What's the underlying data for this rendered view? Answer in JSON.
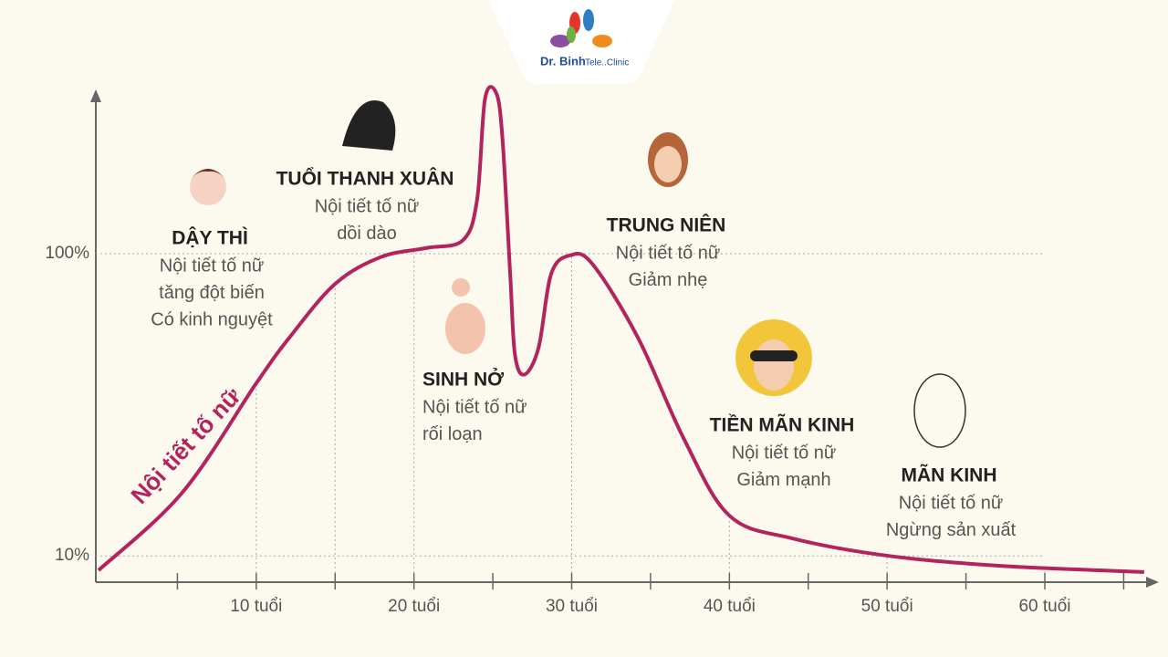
{
  "logo": {
    "name": "Dr. Binh",
    "tagline": "Tele..Clinic"
  },
  "chart_data": {
    "type": "line",
    "series": [
      {
        "name": "Nội tiết tố nữ",
        "color": "#b3245e",
        "x": [
          0,
          5.3,
          10,
          12.1,
          15,
          17.9,
          20.8,
          23.1,
          24,
          24.5,
          25.2,
          25.6,
          26.1,
          26.4,
          27,
          27.9,
          28.7,
          29.9,
          31.3,
          34.2,
          37.1,
          40,
          44,
          50.1,
          57.3,
          66.3
        ],
        "values": [
          5.7,
          28.8,
          61.4,
          75,
          91,
          99,
          101.7,
          104,
          116,
          146,
          148,
          135,
          94,
          70,
          64,
          72,
          94,
          99.5,
          97,
          75,
          45,
          22,
          15.2,
          10,
          7,
          5.2
        ]
      }
    ],
    "xlim": [
      0,
      67
    ],
    "xticks": [
      {
        "value": 10,
        "label": "10 tuổi"
      },
      {
        "value": 20,
        "label": "20 tuổi"
      },
      {
        "value": 30,
        "label": "30 tuổi"
      },
      {
        "value": 40,
        "label": "40 tuổi"
      },
      {
        "value": 50,
        "label": "50 tuổi"
      },
      {
        "value": 60,
        "label": "60 tuổi"
      }
    ],
    "xminorticks": [
      5,
      15,
      25,
      35,
      45,
      55,
      65
    ],
    "ylim": [
      0,
      150
    ],
    "yticks": [
      {
        "value": 10,
        "label": "10%"
      },
      {
        "value": 100,
        "label": "100%"
      }
    ],
    "annotations": [
      {
        "title": "DẬY THÌ",
        "lines": [
          "Nội tiết tố nữ",
          "tăng đột biến",
          "Có kinh nguyệt"
        ]
      },
      {
        "title": "TUỔI THANH XUÂN",
        "lines": [
          "Nội tiết tố nữ",
          "dồi dào"
        ]
      },
      {
        "title": "SINH NỞ",
        "lines": [
          "Nội tiết tố nữ",
          "rối loạn"
        ]
      },
      {
        "title": "TRUNG NIÊN",
        "lines": [
          "Nội tiết tố nữ",
          "Giảm nhẹ"
        ]
      },
      {
        "title": "TIỀN MÃN KINH",
        "lines": [
          "Nội tiết tố nữ",
          "Giảm mạnh"
        ]
      },
      {
        "title": "MÃN KINH",
        "lines": [
          "Nội tiết tố nữ",
          "Ngừng sản xuất"
        ]
      }
    ]
  }
}
